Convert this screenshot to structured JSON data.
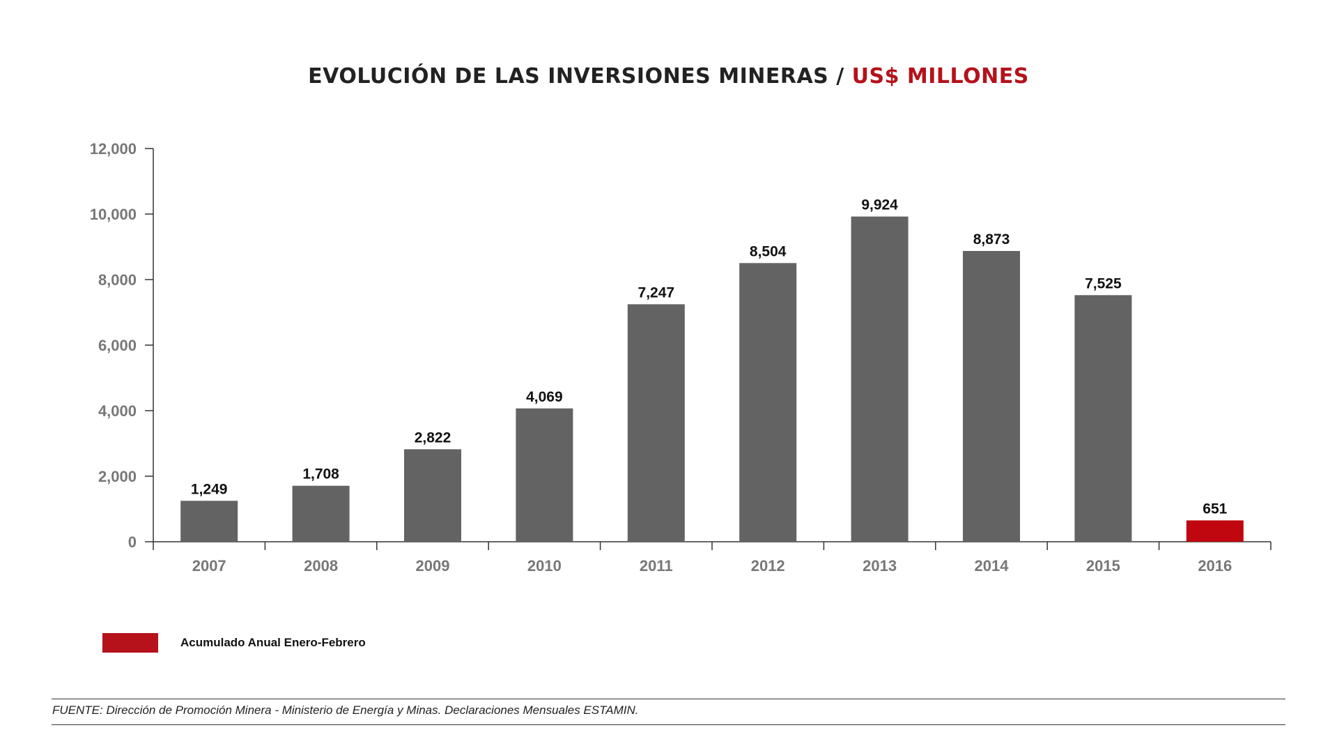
{
  "chart_data": {
    "type": "bar",
    "title": "EVOLUCIÓN DE LAS INVERSIONES MINERAS /",
    "title_accent": "US$ MILLONES",
    "categories": [
      "2007",
      "2008",
      "2009",
      "2010",
      "2011",
      "2012",
      "2013",
      "2014",
      "2015",
      "2016"
    ],
    "values": [
      1249,
      1708,
      2822,
      4069,
      7247,
      8504,
      9924,
      8873,
      7525,
      651
    ],
    "value_labels": [
      "1,249",
      "1,708",
      "2,822",
      "4,069",
      "7,247",
      "8,504",
      "9,924",
      "8,873",
      "7,525",
      "651"
    ],
    "highlight_index": 9,
    "yticks": [
      0,
      2000,
      4000,
      6000,
      8000,
      10000,
      12000
    ],
    "ytick_labels": [
      "0",
      "2,000",
      "4,000",
      "6,000",
      "8,000",
      "10,000",
      "12,000"
    ],
    "ylim": [
      0,
      12000
    ],
    "xlabel": "",
    "ylabel": "",
    "grid": false,
    "legend": {
      "placement": "bottom-left",
      "entries": [
        {
          "label": "Acumulado Anual Enero-Febrero",
          "color": "#b5121b"
        }
      ]
    }
  },
  "colors": {
    "bar": "#636363",
    "highlight": "#c0070f",
    "accent_text": "#b5121b",
    "axis": "#333333"
  },
  "source": "FUENTE: Dirección de Promoción Minera - Ministerio de Energía y Minas. Declaraciones Mensuales ESTAMIN."
}
